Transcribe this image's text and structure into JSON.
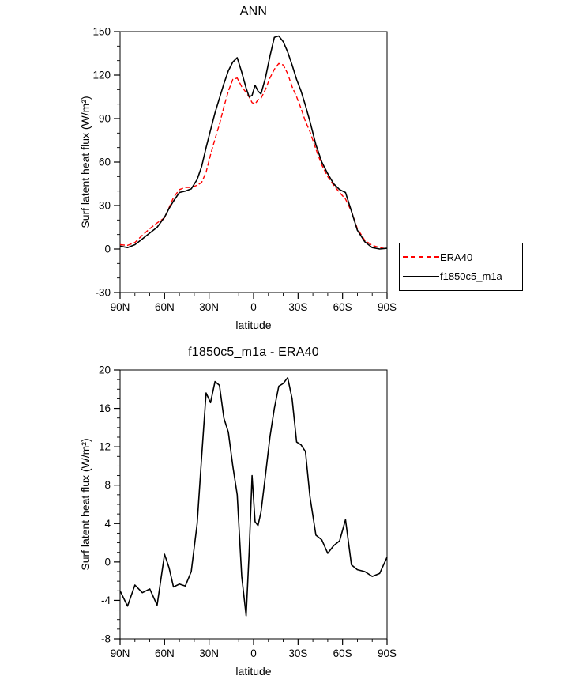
{
  "chart_data": [
    {
      "type": "line",
      "title": "ANN",
      "xlabel": "latitude",
      "ylabel": "Surf latent heat flux (W/m²)",
      "xlim": [
        90,
        -90
      ],
      "ylim": [
        -30,
        150
      ],
      "grid": false,
      "legend_position": "outside-right-bottom",
      "x_ticks": [
        {
          "v": 90,
          "label": "90N"
        },
        {
          "v": 60,
          "label": "60N"
        },
        {
          "v": 30,
          "label": "30N"
        },
        {
          "v": 0,
          "label": "0"
        },
        {
          "v": -30,
          "label": "30S"
        },
        {
          "v": -60,
          "label": "60S"
        },
        {
          "v": -90,
          "label": "90S"
        }
      ],
      "y_ticks": [
        -30,
        0,
        30,
        60,
        90,
        120,
        150
      ],
      "x_minor_step": 10,
      "y_minor_step": 10,
      "x": [
        90,
        85,
        80,
        75,
        70,
        65,
        60,
        57,
        54,
        50,
        46,
        42,
        38,
        35,
        32,
        29,
        26,
        23,
        20,
        17,
        14,
        11,
        8,
        5,
        3,
        1,
        -1,
        -3,
        -5,
        -8,
        -11,
        -14,
        -17,
        -20,
        -23,
        -26,
        -29,
        -32,
        -35,
        -38,
        -42,
        -46,
        -50,
        -54,
        -58,
        -62,
        -66,
        -70,
        -75,
        -80,
        -85,
        -90
      ],
      "series": [
        {
          "name": "ERA40",
          "color": "#ff0000",
          "dash": "dashed",
          "values": [
            3,
            2.5,
            4.5,
            9.5,
            14,
            18,
            21.5,
            28.5,
            35.5,
            41,
            42.5,
            42.5,
            44,
            46,
            53,
            65,
            76,
            86,
            98,
            109,
            117,
            118,
            112,
            108,
            105,
            101,
            100,
            103,
            104,
            110,
            118,
            124,
            128,
            127,
            121,
            112,
            105,
            97,
            88,
            81,
            69,
            58,
            50,
            44,
            39,
            34.5,
            26,
            14,
            6,
            2.5,
            1,
            0
          ]
        },
        {
          "name": "f1850c5_m1a",
          "color": "#000000",
          "dash": "solid",
          "values": [
            2,
            1,
            3,
            7,
            11,
            15,
            22,
            28,
            33,
            39,
            40,
            41.5,
            48,
            57,
            70,
            82,
            94,
            104,
            114,
            123,
            129,
            132,
            122,
            111,
            105,
            106,
            113,
            109,
            107,
            118,
            133,
            146,
            147,
            143,
            136,
            127,
            117,
            109,
            99,
            88,
            72,
            60,
            52,
            45,
            41,
            39,
            26,
            13,
            5,
            1,
            0,
            0.5
          ]
        }
      ]
    },
    {
      "type": "line",
      "title": "f1850c5_m1a - ERA40",
      "xlabel": "latitude",
      "ylabel": "Surf latent heat flux (W/m²)",
      "xlim": [
        90,
        -90
      ],
      "ylim": [
        -8,
        20
      ],
      "grid": false,
      "legend_position": "none",
      "x_ticks": [
        {
          "v": 90,
          "label": "90N"
        },
        {
          "v": 60,
          "label": "60N"
        },
        {
          "v": 30,
          "label": "30N"
        },
        {
          "v": 0,
          "label": "0"
        },
        {
          "v": -30,
          "label": "30S"
        },
        {
          "v": -60,
          "label": "60S"
        },
        {
          "v": -90,
          "label": "90S"
        }
      ],
      "y_ticks": [
        -8,
        -4,
        0,
        4,
        8,
        12,
        16,
        20
      ],
      "x_minor_step": 10,
      "y_minor_step": 1,
      "x": [
        90,
        85,
        80,
        75,
        70,
        65,
        60,
        57,
        54,
        50,
        46,
        42,
        38,
        35,
        32,
        29,
        26,
        23,
        20,
        17,
        14,
        11,
        8,
        5,
        3,
        1,
        -1,
        -3,
        -5,
        -8,
        -11,
        -14,
        -17,
        -20,
        -23,
        -26,
        -29,
        -32,
        -35,
        -38,
        -42,
        -46,
        -50,
        -54,
        -58,
        -62,
        -66,
        -70,
        -75,
        -80,
        -85,
        -90
      ],
      "series": [
        {
          "name": "f1850c5_m1a - ERA40",
          "color": "#000000",
          "dash": "solid",
          "values": [
            -3,
            -4.6,
            -2.4,
            -3.2,
            -2.8,
            -4.5,
            0.8,
            -0.6,
            -2.6,
            -2.3,
            -2.5,
            -1,
            4,
            11,
            17.6,
            16.6,
            18.8,
            18.4,
            15,
            13.5,
            10,
            7,
            -1.5,
            -5.6,
            1,
            9,
            4.2,
            3.8,
            5.2,
            9,
            13,
            16,
            18.3,
            18.6,
            19.2,
            17,
            12.5,
            12.2,
            11.5,
            6.8,
            2.8,
            2.3,
            0.9,
            1.7,
            2.2,
            4.4,
            -0.3,
            -0.8,
            -1,
            -1.5,
            -1.2,
            0.5
          ]
        }
      ]
    }
  ]
}
